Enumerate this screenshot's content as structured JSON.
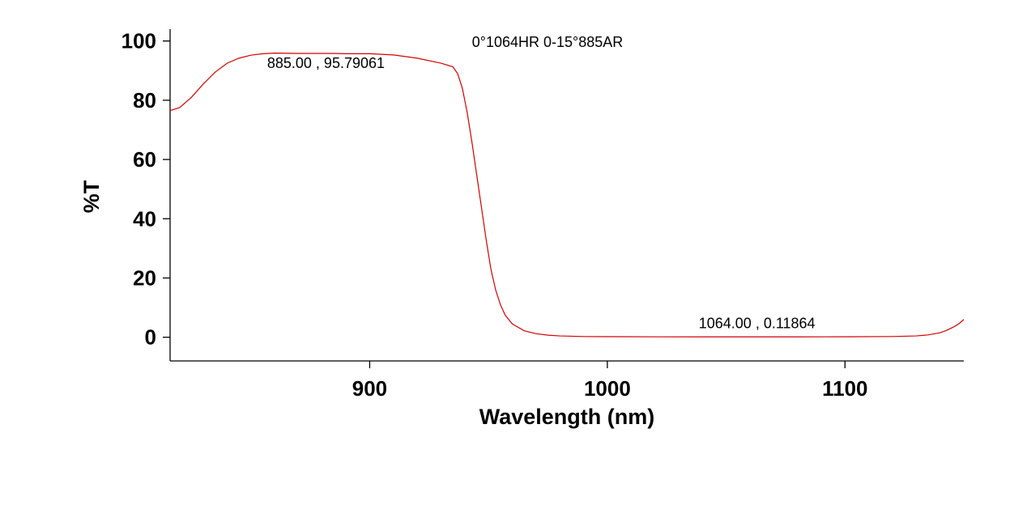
{
  "chart_data": {
    "type": "line",
    "title": "0°1064HR 0-15°885AR",
    "xlabel": "Wavelength (nm)",
    "ylabel": "%T",
    "xlim": [
      816,
      1150
    ],
    "ylim": [
      -8,
      104
    ],
    "x_ticks": [
      900,
      1000,
      1100
    ],
    "x_tick_labels": [
      "900",
      "1000",
      "1100"
    ],
    "y_ticks": [
      0,
      20,
      40,
      60,
      80,
      100
    ],
    "y_tick_labels": [
      "0",
      "20",
      "40",
      "60",
      "80",
      "100"
    ],
    "grid": false,
    "colors": {
      "series": "#d40000"
    },
    "annotations": [
      {
        "text": "885.00 , 95.79061",
        "x": 885.0,
        "y": 95.79061
      },
      {
        "text": "1064.00 , 0.11864",
        "x": 1064.0,
        "y": 0.11864
      }
    ],
    "series": [
      {
        "x": [
          816,
          820,
          825,
          830,
          835,
          840,
          845,
          850,
          855,
          860,
          870,
          880,
          885,
          890,
          900,
          910,
          920,
          930,
          935,
          937,
          939,
          941,
          943,
          945,
          947,
          949,
          951,
          953,
          955,
          957,
          960,
          965,
          970,
          975,
          980,
          990,
          1000,
          1020,
          1040,
          1060,
          1064,
          1080,
          1100,
          1120,
          1130,
          1135,
          1140,
          1143,
          1146,
          1148,
          1150
        ],
        "y": [
          76.5,
          77.5,
          81,
          85.5,
          89.5,
          92.5,
          94.2,
          95.2,
          95.7,
          95.9,
          95.8,
          95.8,
          95.8,
          95.7,
          95.7,
          95.3,
          94.2,
          92.5,
          91.3,
          89,
          84,
          76,
          66,
          55,
          44,
          33,
          23,
          16,
          11,
          7.5,
          4.5,
          2.2,
          1.2,
          0.7,
          0.45,
          0.25,
          0.2,
          0.15,
          0.12,
          0.12,
          0.11864,
          0.13,
          0.16,
          0.25,
          0.45,
          0.8,
          1.5,
          2.4,
          3.6,
          4.6,
          6
        ]
      }
    ]
  }
}
